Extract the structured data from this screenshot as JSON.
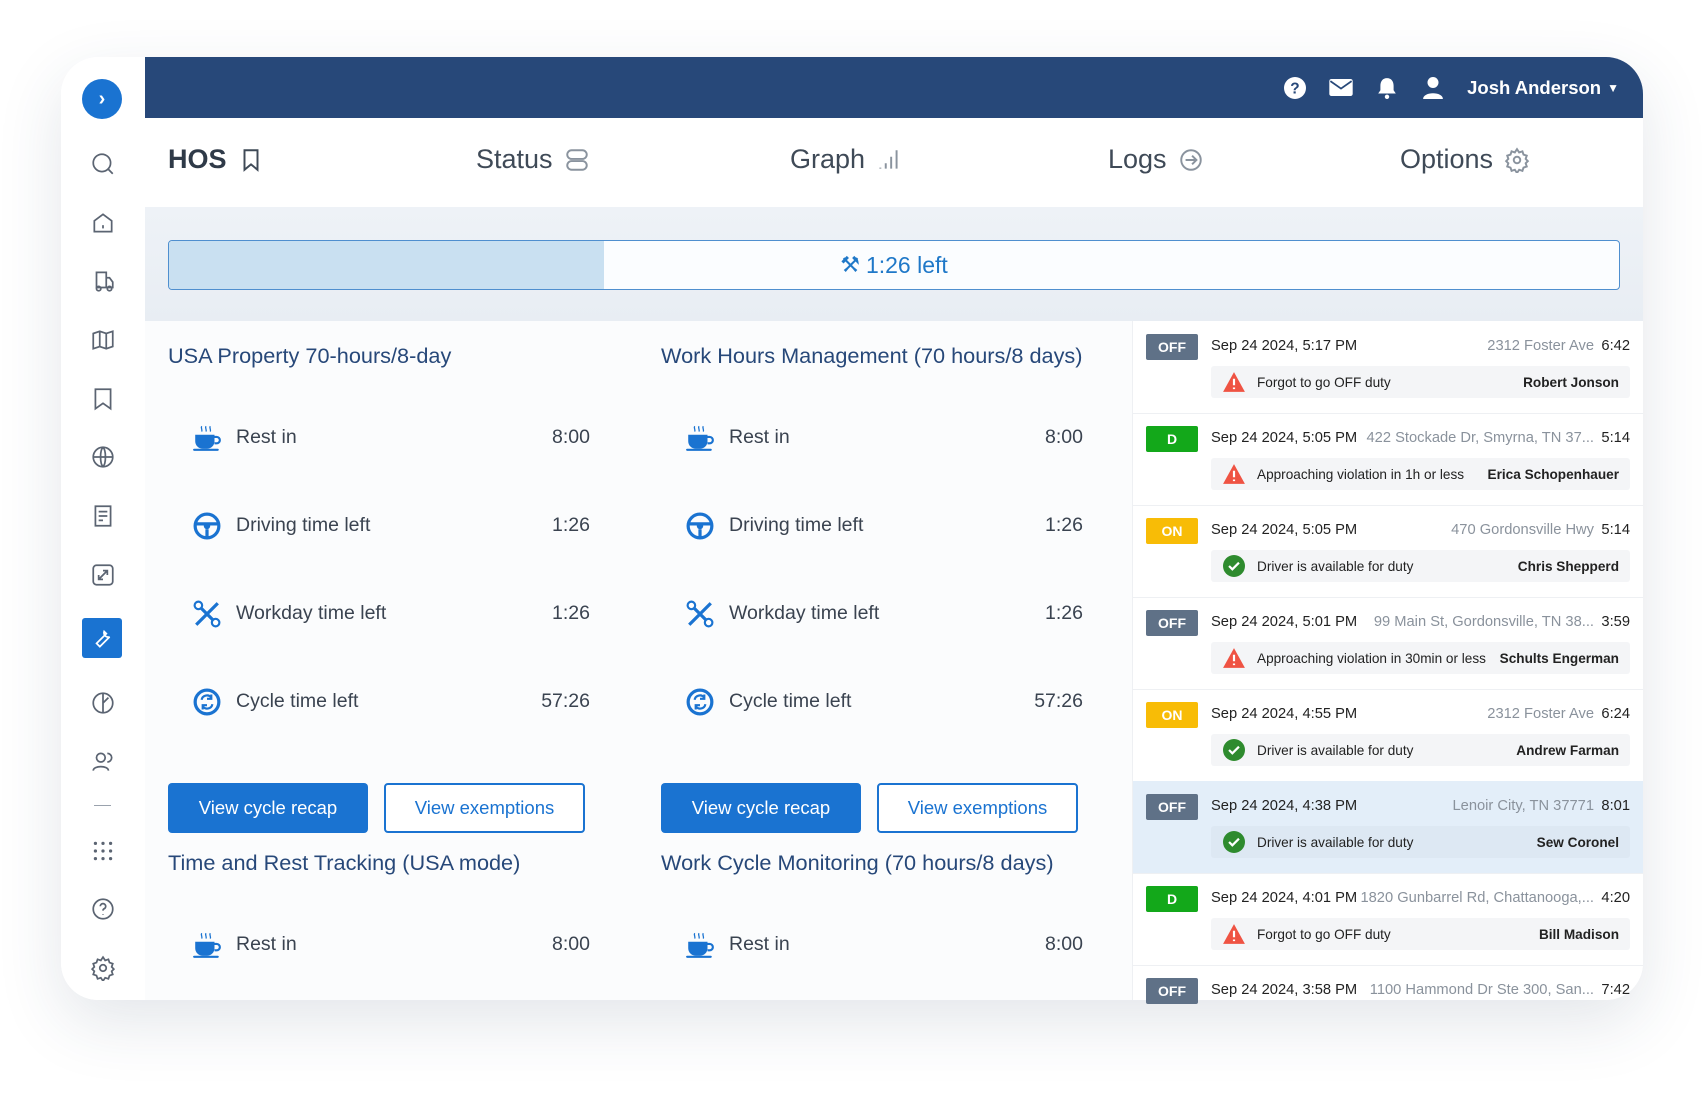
{
  "header": {
    "user_name": "Josh Anderson",
    "icons": [
      "help-icon",
      "mail-icon",
      "bell-icon",
      "user-icon"
    ]
  },
  "sidebar": {
    "items": [
      "search",
      "home",
      "truck",
      "map",
      "bookmark",
      "globe",
      "reports",
      "resize",
      "tools",
      "leaf",
      "users",
      "apps",
      "help",
      "settings"
    ],
    "active": "tools"
  },
  "tabs": [
    {
      "label": "HOS",
      "icon": "bookmark-icon",
      "active": true
    },
    {
      "label": "Status",
      "icon": "database-icon"
    },
    {
      "label": "Graph",
      "icon": "signal-icon"
    },
    {
      "label": "Logs",
      "icon": "arrow-circle-icon"
    },
    {
      "label": "Options",
      "icon": "gear-icon"
    }
  ],
  "progress": {
    "label": "1:26 left",
    "fraction": 0.3,
    "color": "#1a73d1"
  },
  "sections": [
    {
      "title": "USA Property 70-hours/8-day",
      "rows": [
        {
          "label": "Rest in",
          "value": "8:00"
        },
        {
          "label": "Driving time left",
          "value": "1:26"
        },
        {
          "label": "Workday time left",
          "value": "1:26"
        },
        {
          "label": "Cycle time left",
          "value": "57:26"
        }
      ],
      "primary": "View cycle recap",
      "secondary": "View exemptions"
    },
    {
      "title": "Work Hours Management (70 hours/8 days)",
      "rows": [
        {
          "label": "Rest in",
          "value": "8:00"
        },
        {
          "label": "Driving time left",
          "value": "1:26"
        },
        {
          "label": "Workday time left",
          "value": "1:26"
        },
        {
          "label": "Cycle time left",
          "value": "57:26"
        }
      ],
      "primary": "View cycle recap",
      "secondary": "View exemptions"
    },
    {
      "title": "Time and Rest Tracking (USA mode)",
      "rows": [
        {
          "label": "Rest in",
          "value": "8:00"
        }
      ]
    },
    {
      "title": "Work Cycle Monitoring (70 hours/8 days)",
      "rows": [
        {
          "label": "Rest in",
          "value": "8:00"
        }
      ]
    }
  ],
  "status_colors": {
    "OFF": "#5f7187",
    "D": "#13a81a",
    "ON": "#f8bc06"
  },
  "events": [
    {
      "status": "OFF",
      "datetime": "Sep 24 2024, 5:17 PM",
      "address": "2312 Foster Ave",
      "duration": "6:42",
      "alert": "Forgot to go OFF duty",
      "alert_type": "warning",
      "driver": "Robert Jonson"
    },
    {
      "status": "D",
      "datetime": "Sep 24 2024, 5:05 PM",
      "address": "422 Stockade Dr, Smyrna, TN 37...",
      "duration": "5:14",
      "alert": "Approaching violation in 1h or less",
      "alert_type": "warning",
      "driver": "Erica Schopenhauer"
    },
    {
      "status": "ON",
      "datetime": "Sep 24 2024, 5:05 PM",
      "address": "470 Gordonsville Hwy",
      "duration": "5:14",
      "alert": "Driver is available for duty",
      "alert_type": "ok",
      "driver": "Chris Shepperd"
    },
    {
      "status": "OFF",
      "datetime": "Sep 24 2024, 5:01 PM",
      "address": "99 Main St, Gordonsville, TN 38...",
      "duration": "3:59",
      "alert": "Approaching violation in 30min or less",
      "alert_type": "warning",
      "driver": "Schults Engerman"
    },
    {
      "status": "ON",
      "datetime": "Sep 24 2024, 4:55 PM",
      "address": "2312 Foster Ave",
      "duration": "6:24",
      "alert": "Driver is available for duty",
      "alert_type": "ok",
      "driver": "Andrew Farman"
    },
    {
      "status": "OFF",
      "datetime": "Sep 24 2024, 4:38 PM",
      "address": "Lenoir City, TN 37771",
      "duration": "8:01",
      "alert": "Driver is available for duty",
      "alert_type": "ok",
      "driver": "Sew Coronel",
      "selected": true
    },
    {
      "status": "D",
      "datetime": "Sep 24 2024, 4:01 PM",
      "address": "1820 Gunbarrel Rd, Chattanooga,...",
      "duration": "4:20",
      "alert": "Forgot to go OFF duty",
      "alert_type": "warning",
      "driver": "Bill Madison"
    },
    {
      "status": "OFF",
      "datetime": "Sep 24 2024, 3:58 PM",
      "address": "1100 Hammond Dr Ste 300, San...",
      "duration": "7:42"
    }
  ]
}
